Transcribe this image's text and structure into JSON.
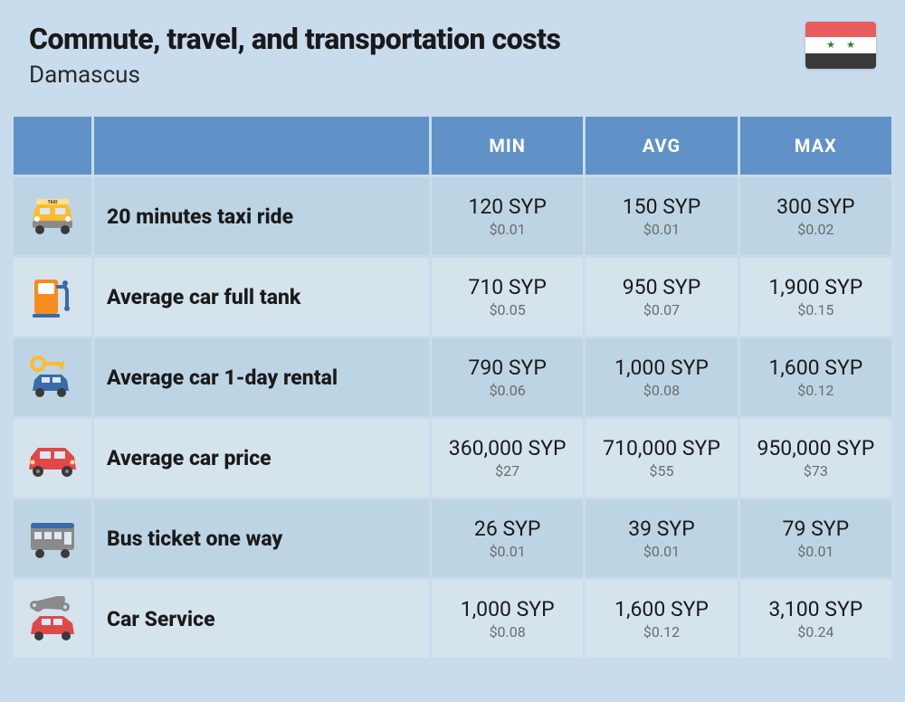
{
  "header": {
    "title": "Commute, travel, and transportation costs",
    "subtitle": "Damascus"
  },
  "columns": {
    "min": "MIN",
    "avg": "AVG",
    "max": "MAX"
  },
  "rows": [
    {
      "icon": "taxi",
      "label": "20 minutes taxi ride",
      "min": {
        "local": "120 SYP",
        "usd": "$0.01"
      },
      "avg": {
        "local": "150 SYP",
        "usd": "$0.01"
      },
      "max": {
        "local": "300 SYP",
        "usd": "$0.02"
      }
    },
    {
      "icon": "fuel-pump",
      "label": "Average car full tank",
      "min": {
        "local": "710 SYP",
        "usd": "$0.05"
      },
      "avg": {
        "local": "950 SYP",
        "usd": "$0.07"
      },
      "max": {
        "local": "1,900 SYP",
        "usd": "$0.15"
      }
    },
    {
      "icon": "car-rental",
      "label": "Average car 1-day rental",
      "min": {
        "local": "790 SYP",
        "usd": "$0.06"
      },
      "avg": {
        "local": "1,000 SYP",
        "usd": "$0.08"
      },
      "max": {
        "local": "1,600 SYP",
        "usd": "$0.12"
      }
    },
    {
      "icon": "car",
      "label": "Average car price",
      "min": {
        "local": "360,000 SYP",
        "usd": "$27"
      },
      "avg": {
        "local": "710,000 SYP",
        "usd": "$55"
      },
      "max": {
        "local": "950,000 SYP",
        "usd": "$73"
      }
    },
    {
      "icon": "bus",
      "label": "Bus ticket one way",
      "min": {
        "local": "26 SYP",
        "usd": "$0.01"
      },
      "avg": {
        "local": "39 SYP",
        "usd": "$0.01"
      },
      "max": {
        "local": "79 SYP",
        "usd": "$0.01"
      }
    },
    {
      "icon": "car-service",
      "label": "Car Service",
      "min": {
        "local": "1,000 SYP",
        "usd": "$0.08"
      },
      "avg": {
        "local": "1,600 SYP",
        "usd": "$0.12"
      },
      "max": {
        "local": "3,100 SYP",
        "usd": "$0.24"
      }
    }
  ],
  "flag": {
    "colors": {
      "top": "#e85c5c",
      "middle": "#ffffff",
      "bottom": "#3a3a3a",
      "star": "#2e7d32"
    }
  },
  "styling": {
    "page_bg": "#c9dced",
    "header_bg": "#6192c7",
    "header_text": "#ffffff",
    "row_odd_bg": "#bdd4e4",
    "row_even_bg": "#d5e3ed",
    "primary_text": "#1a1a1a",
    "secondary_text": "#6b6b6b",
    "title_fontsize": 32,
    "subtitle_fontsize": 26,
    "th_fontsize": 20,
    "label_fontsize": 23,
    "primary_fontsize": 23,
    "secondary_fontsize": 16
  },
  "icon_colors": {
    "taxi_body": "#fdbb2e",
    "taxi_stripe": "#ffe083",
    "fuel_body": "#f78c1e",
    "fuel_accent": "#3a6aa8",
    "rental_car": "#3a6aa8",
    "rental_key": "#fdbb2e",
    "car_body": "#e04848",
    "bus_body": "#8a8a8a",
    "bus_accent": "#3a6aa8",
    "wrench": "#8a8a8a",
    "service_car": "#e04848"
  }
}
